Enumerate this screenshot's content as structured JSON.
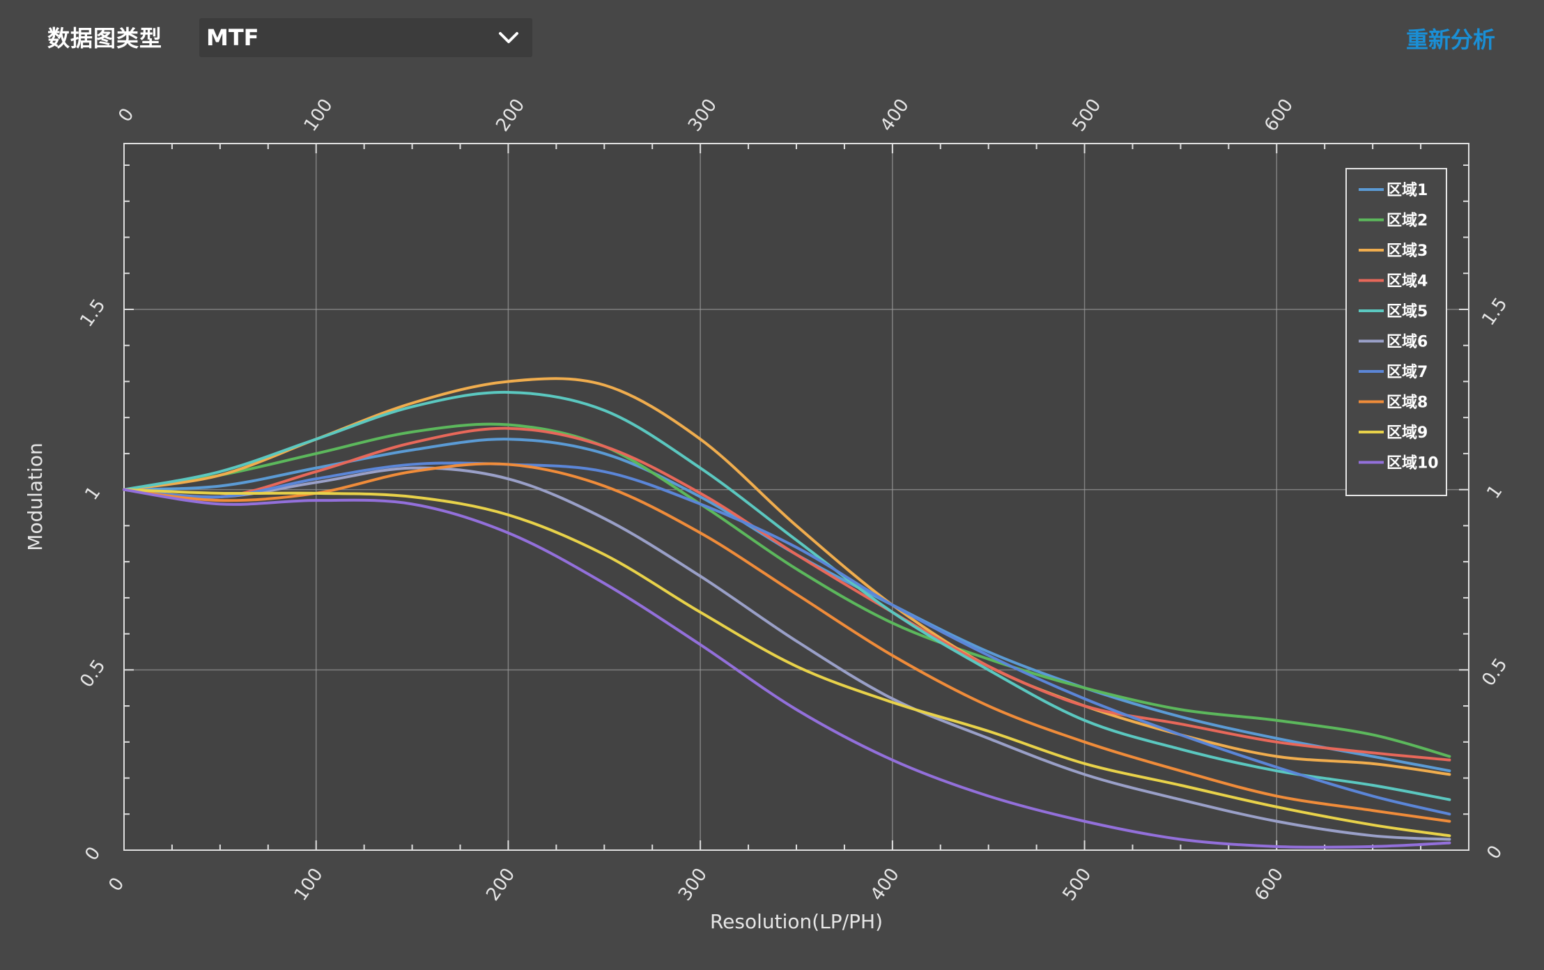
{
  "toolbar": {
    "type_label": "数据图类型",
    "selected_type": "MTF",
    "reanalyze_label": "重新分析"
  },
  "colors": {
    "background": "#474747",
    "plot_background": "#434343",
    "grid": "#9a9a9a",
    "link": "#1a8fd6"
  },
  "chart_data": {
    "type": "line",
    "title": "",
    "xlabel": "Resolution(LP/PH)",
    "ylabel": "Modulation",
    "xlim": [
      0,
      700
    ],
    "ylim": [
      0,
      1.96
    ],
    "x_ticks": [
      0,
      100,
      200,
      300,
      400,
      500,
      600
    ],
    "y_ticks": [
      0,
      0.5,
      1,
      1.5
    ],
    "x_tick_labels": [
      "0",
      "100",
      "200",
      "300",
      "400",
      "500",
      "600"
    ],
    "y_tick_labels": [
      "0",
      "0.5",
      "1",
      "1.5"
    ],
    "grid": true,
    "legend_position": "top-right",
    "x": [
      0,
      50,
      100,
      150,
      200,
      250,
      300,
      350,
      400,
      450,
      500,
      550,
      600,
      650,
      690
    ],
    "series": [
      {
        "name": "区域1",
        "color": "#5b9bd5",
        "values": [
          1.0,
          1.01,
          1.06,
          1.11,
          1.14,
          1.1,
          0.98,
          0.82,
          0.68,
          0.55,
          0.45,
          0.37,
          0.31,
          0.26,
          0.22
        ]
      },
      {
        "name": "区域2",
        "color": "#5cb85c",
        "values": [
          1.0,
          1.04,
          1.1,
          1.16,
          1.18,
          1.12,
          0.96,
          0.78,
          0.63,
          0.53,
          0.45,
          0.39,
          0.36,
          0.32,
          0.26
        ]
      },
      {
        "name": "区域3",
        "color": "#f0ad4e",
        "values": [
          1.0,
          1.04,
          1.14,
          1.24,
          1.3,
          1.29,
          1.14,
          0.9,
          0.68,
          0.51,
          0.4,
          0.32,
          0.26,
          0.24,
          0.21
        ]
      },
      {
        "name": "区域4",
        "color": "#e8685a",
        "values": [
          1.0,
          0.98,
          1.05,
          1.13,
          1.17,
          1.12,
          0.99,
          0.82,
          0.66,
          0.51,
          0.4,
          0.35,
          0.3,
          0.27,
          0.25
        ]
      },
      {
        "name": "区域5",
        "color": "#5bc8c0",
        "values": [
          1.0,
          1.05,
          1.14,
          1.23,
          1.27,
          1.22,
          1.06,
          0.86,
          0.66,
          0.5,
          0.36,
          0.28,
          0.22,
          0.18,
          0.14
        ]
      },
      {
        "name": "区域6",
        "color": "#9aa0c8",
        "values": [
          1.0,
          0.98,
          1.02,
          1.06,
          1.03,
          0.92,
          0.76,
          0.58,
          0.42,
          0.31,
          0.21,
          0.14,
          0.08,
          0.04,
          0.03
        ]
      },
      {
        "name": "区域7",
        "color": "#5b86d8",
        "values": [
          1.0,
          0.98,
          1.03,
          1.07,
          1.07,
          1.05,
          0.96,
          0.84,
          0.68,
          0.54,
          0.42,
          0.32,
          0.23,
          0.15,
          0.1
        ]
      },
      {
        "name": "区域8",
        "color": "#f08c3a",
        "values": [
          1.0,
          0.97,
          0.99,
          1.05,
          1.07,
          1.01,
          0.88,
          0.71,
          0.54,
          0.4,
          0.3,
          0.22,
          0.15,
          0.11,
          0.08
        ]
      },
      {
        "name": "区域9",
        "color": "#e8d24a",
        "values": [
          1.0,
          0.99,
          0.99,
          0.98,
          0.93,
          0.82,
          0.66,
          0.51,
          0.41,
          0.33,
          0.24,
          0.18,
          0.12,
          0.07,
          0.04
        ]
      },
      {
        "name": "区域10",
        "color": "#9370db",
        "values": [
          1.0,
          0.96,
          0.97,
          0.96,
          0.88,
          0.74,
          0.57,
          0.39,
          0.25,
          0.15,
          0.08,
          0.03,
          0.01,
          0.01,
          0.02
        ]
      }
    ]
  }
}
